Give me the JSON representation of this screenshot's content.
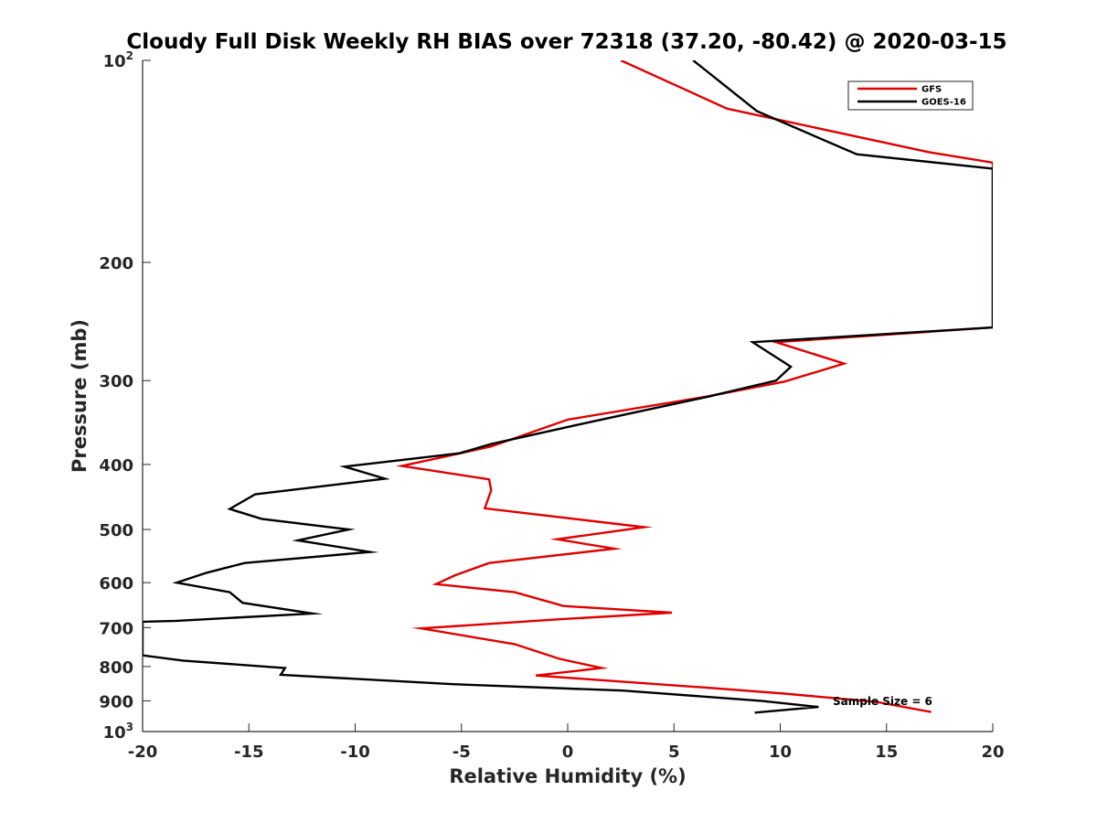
{
  "chart_data": {
    "type": "line",
    "title": "Cloudy Full Disk Weekly RH BIAS over 72318 (37.20, -80.42) @ 2020-03-15",
    "xlabel": "Relative Humidity (%)",
    "ylabel": "Pressure (mb)",
    "xlim": [
      -20,
      20
    ],
    "ylim": [
      100,
      1000
    ],
    "yscale": "log",
    "y_reversed": true,
    "x_ticks": [
      -20,
      -15,
      -10,
      -5,
      0,
      5,
      10,
      15,
      20
    ],
    "x_tick_labels": [
      "-20",
      "-15",
      "-10",
      "-5",
      "0",
      "5",
      "10",
      "15",
      "20"
    ],
    "y_ticks": [
      {
        "value": 100,
        "base": "10",
        "exp": "2"
      },
      {
        "value": 200,
        "label": "200"
      },
      {
        "value": 300,
        "label": "300"
      },
      {
        "value": 400,
        "label": "400"
      },
      {
        "value": 500,
        "label": "500"
      },
      {
        "value": 600,
        "label": "600"
      },
      {
        "value": 700,
        "label": "700"
      },
      {
        "value": 800,
        "label": "800"
      },
      {
        "value": 900,
        "label": "900"
      },
      {
        "value": 1000,
        "base": "10",
        "exp": "3"
      }
    ],
    "grid": false,
    "legend_position": "top-right",
    "annotation": "Sample Size = 6",
    "series": [
      {
        "name": "GFS",
        "color": "#e00000",
        "points": [
          [
            2.5,
            100
          ],
          [
            7.5,
            118
          ],
          [
            17,
            137
          ],
          [
            20,
            142
          ],
          [
            20,
            250
          ],
          [
            9.8,
            263
          ],
          [
            13,
            283
          ],
          [
            10.2,
            301
          ],
          [
            6.5,
            317
          ],
          [
            0,
            343
          ],
          [
            -3.6,
            376
          ],
          [
            -5.7,
            389
          ],
          [
            -7.8,
            402
          ],
          [
            -3.7,
            421
          ],
          [
            -3.6,
            437
          ],
          [
            -3.9,
            465
          ],
          [
            3.6,
            496
          ],
          [
            -0.5,
            517
          ],
          [
            2.2,
            534
          ],
          [
            -3.7,
            561
          ],
          [
            -5.3,
            585
          ],
          [
            -6.2,
            603
          ],
          [
            -2.5,
            620
          ],
          [
            -0.2,
            650
          ],
          [
            4.9,
            665
          ],
          [
            -0.3,
            680
          ],
          [
            -6.9,
            702
          ],
          [
            -2.5,
            741
          ],
          [
            -0.4,
            779
          ],
          [
            1.6,
            804
          ],
          [
            -1.5,
            825
          ],
          [
            6.3,
            859
          ],
          [
            10.2,
            878
          ],
          [
            14.5,
            903
          ],
          [
            17.1,
            935
          ]
        ]
      },
      {
        "name": "GOES-16",
        "color": "#000000",
        "points": [
          [
            5.9,
            100
          ],
          [
            8.9,
            119
          ],
          [
            13.6,
            138
          ],
          [
            20,
            145
          ],
          [
            20,
            250
          ],
          [
            8.7,
            263
          ],
          [
            10.5,
            286
          ],
          [
            9.8,
            300
          ],
          [
            6.6,
            317
          ],
          [
            1.2,
            345
          ],
          [
            -3.6,
            373
          ],
          [
            -5.1,
            385
          ],
          [
            -10.5,
            403
          ],
          [
            -8.6,
            420
          ],
          [
            -14.7,
            443
          ],
          [
            -15.9,
            466
          ],
          [
            -14.4,
            482
          ],
          [
            -10.3,
            500
          ],
          [
            -12.7,
            519
          ],
          [
            -9.3,
            540
          ],
          [
            -15.2,
            561
          ],
          [
            -17,
            580
          ],
          [
            -18.4,
            600
          ],
          [
            -15.9,
            620
          ],
          [
            -15.3,
            643
          ],
          [
            -12,
            667
          ],
          [
            -18.4,
            684
          ],
          [
            -20,
            686
          ],
          [
            -20,
            770
          ],
          [
            -18.1,
            784
          ],
          [
            -13.3,
            804
          ],
          [
            -13.5,
            823
          ],
          [
            -5.4,
            850
          ],
          [
            2.6,
            869
          ],
          [
            9.1,
            900
          ],
          [
            11.8,
            919
          ],
          [
            8.8,
            937
          ]
        ]
      }
    ]
  }
}
